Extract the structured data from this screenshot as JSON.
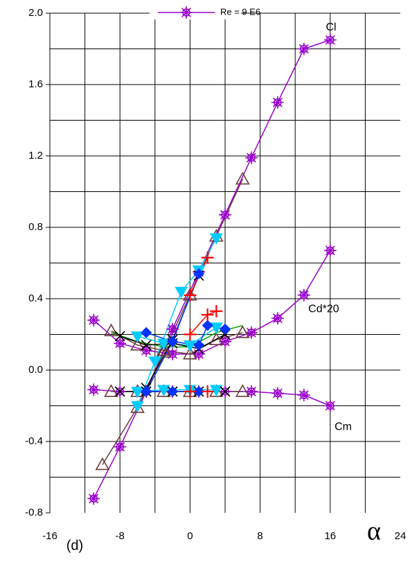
{
  "chart_data": {
    "type": "line",
    "xlim": [
      -16,
      24
    ],
    "ylim": [
      -0.8,
      2.0
    ],
    "xticks": [
      -16,
      -8,
      0,
      8,
      16,
      24
    ],
    "yticks": [
      {
        "value": 2.0,
        "label": "2.0"
      },
      {
        "value": 1.6,
        "label": "1.6"
      },
      {
        "value": 1.2,
        "label": "1.2"
      },
      {
        "value": 0.8,
        "label": "0.8"
      },
      {
        "value": 0.4,
        "label": "0.4"
      },
      {
        "value": 0.0,
        "label": "0.0"
      },
      {
        "value": -0.4,
        "label": "-0.4"
      },
      {
        "value": -0.8,
        "label": "-0.8"
      }
    ],
    "xgrid": [
      -12,
      -8,
      -4,
      0,
      4,
      8,
      12,
      16,
      20
    ],
    "ygrid": [
      1.8,
      1.6,
      1.4,
      1.2,
      1.0,
      0.8,
      0.6,
      0.4,
      0.2,
      0.0,
      -0.2,
      -0.4,
      -0.6
    ],
    "grid": true,
    "xlabel": "α",
    "annotations": [
      {
        "text": "Cl",
        "x": 15.5,
        "y": 1.92
      },
      {
        "text": "Cd*20",
        "x": 13.5,
        "y": 0.34
      },
      {
        "text": "Cm",
        "x": 16.5,
        "y": -0.32
      }
    ],
    "caption": "(d)",
    "series": [
      {
        "name": "Re = 9 E6",
        "color": "#9900cc",
        "marker": "star",
        "x": [
          -11,
          -8,
          -5,
          -2,
          1,
          4,
          7,
          10,
          13,
          16
        ],
        "values": [
          -0.72,
          -0.43,
          -0.12,
          0.23,
          0.55,
          0.87,
          1.19,
          1.5,
          1.8,
          1.85
        ]
      },
      {
        "color": "#9900cc",
        "marker": "star",
        "x": [
          -11,
          -8,
          -5,
          -2,
          1,
          4,
          7,
          10,
          13,
          16
        ],
        "values": [
          0.28,
          0.15,
          0.11,
          0.09,
          0.09,
          0.16,
          0.21,
          0.29,
          0.42,
          0.67
        ]
      },
      {
        "color": "#9900cc",
        "marker": "star",
        "x": [
          -11,
          -8,
          -5,
          -2,
          1,
          4,
          7,
          10,
          13,
          16
        ],
        "values": [
          -0.11,
          -0.12,
          -0.12,
          -0.12,
          -0.12,
          -0.12,
          -0.12,
          -0.13,
          -0.14,
          -0.2
        ]
      },
      {
        "color": "#6b3a3a",
        "marker": "triangle",
        "x": [
          -10,
          -6,
          -3,
          0,
          3,
          6
        ],
        "values": [
          -0.53,
          -0.21,
          0.1,
          0.42,
          0.75,
          1.07
        ]
      },
      {
        "color": "#6b3a3a",
        "marker": "triangle",
        "x": [
          -9,
          -6,
          -3,
          0,
          3,
          6
        ],
        "values": [
          0.22,
          0.14,
          0.11,
          0.09,
          0.17,
          0.21
        ]
      },
      {
        "color": "#6b3a3a",
        "marker": "triangle",
        "x": [
          -9,
          -6,
          -3,
          0,
          3,
          6
        ],
        "values": [
          -0.12,
          -0.12,
          -0.12,
          -0.12,
          -0.12,
          -0.12
        ]
      },
      {
        "color": "#00ccff",
        "marker": "tri-down",
        "x": [
          -6,
          -4,
          -1,
          1,
          3
        ],
        "values": [
          -0.2,
          0.05,
          0.44,
          0.56,
          0.74
        ]
      },
      {
        "color": "#00ccff",
        "marker": "tri-down",
        "x": [
          -6,
          -3,
          0,
          3
        ],
        "values": [
          0.19,
          0.15,
          0.14,
          0.24
        ]
      },
      {
        "color": "#00ccff",
        "marker": "tri-down",
        "x": [
          -6,
          -3,
          0,
          3
        ],
        "values": [
          -0.12,
          -0.11,
          -0.11,
          -0.11
        ]
      },
      {
        "color": "#00aa00",
        "marker": "none",
        "x": [
          -9,
          -6,
          -3,
          0,
          3,
          6
        ],
        "values": [
          0.21,
          0.16,
          0.13,
          0.13,
          0.21,
          0.25
        ]
      },
      {
        "color": "#000000",
        "marker": "x",
        "x": [
          -5,
          -2,
          1
        ],
        "values": [
          -0.1,
          0.17,
          0.53
        ]
      },
      {
        "color": "#000000",
        "marker": "x",
        "x": [
          -8,
          -5,
          -2,
          1,
          4
        ],
        "values": [
          0.19,
          0.14,
          0.15,
          0.12,
          0.2
        ]
      },
      {
        "color": "#000000",
        "marker": "x",
        "x": [
          -8,
          -5,
          -2,
          1,
          4
        ],
        "values": [
          -0.12,
          -0.12,
          -0.12,
          -0.12,
          -0.12
        ]
      },
      {
        "color": "#0033ff",
        "marker": "diamond",
        "x": [
          -5,
          -2,
          1
        ],
        "values": [
          -0.12,
          0.16,
          0.54
        ]
      },
      {
        "color": "#0033ff",
        "marker": "diamond",
        "x": [
          -5,
          -2,
          1,
          2,
          4
        ],
        "values": [
          0.21,
          0.16,
          0.14,
          0.25,
          0.23
        ]
      },
      {
        "color": "#0033ff",
        "marker": "diamond",
        "x": [
          -5,
          -2,
          1
        ],
        "values": [
          -0.12,
          -0.12,
          -0.12
        ]
      },
      {
        "color": "#ff0000",
        "marker": "plus",
        "x": [
          0,
          2
        ],
        "values": [
          0.42,
          0.63
        ]
      },
      {
        "color": "#ff0000",
        "marker": "plus",
        "x": [
          0,
          2,
          3
        ],
        "values": [
          0.2,
          0.31,
          0.33
        ]
      },
      {
        "color": "#ff0000",
        "marker": "plus",
        "x": [
          0,
          2
        ],
        "values": [
          -0.12,
          -0.12
        ]
      }
    ]
  }
}
